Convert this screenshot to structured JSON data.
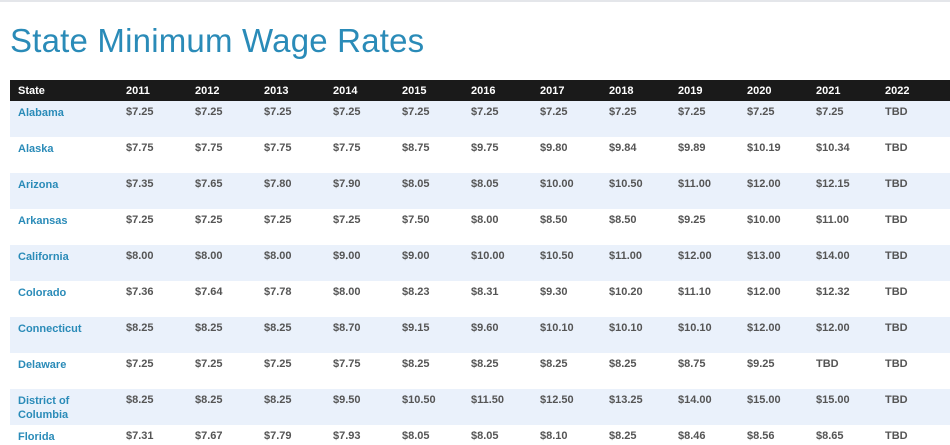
{
  "page": {
    "title": "State Minimum Wage Rates"
  },
  "table": {
    "headers": [
      "State",
      "2011",
      "2012",
      "2013",
      "2014",
      "2015",
      "2016",
      "2017",
      "2018",
      "2019",
      "2020",
      "2021",
      "2022"
    ],
    "rows": [
      {
        "state": "Alabama",
        "values": [
          "$7.25",
          "$7.25",
          "$7.25",
          "$7.25",
          "$7.25",
          "$7.25",
          "$7.25",
          "$7.25",
          "$7.25",
          "$7.25",
          "$7.25",
          "TBD"
        ]
      },
      {
        "state": "Alaska",
        "values": [
          "$7.75",
          "$7.75",
          "$7.75",
          "$7.75",
          "$8.75",
          "$9.75",
          "$9.80",
          "$9.84",
          "$9.89",
          "$10.19",
          "$10.34",
          "TBD"
        ]
      },
      {
        "state": "Arizona",
        "values": [
          "$7.35",
          "$7.65",
          "$7.80",
          "$7.90",
          "$8.05",
          "$8.05",
          "$10.00",
          "$10.50",
          "$11.00",
          "$12.00",
          "$12.15",
          "TBD"
        ]
      },
      {
        "state": "Arkansas",
        "values": [
          "$7.25",
          "$7.25",
          "$7.25",
          "$7.25",
          "$7.50",
          "$8.00",
          "$8.50",
          "$8.50",
          "$9.25",
          "$10.00",
          "$11.00",
          "TBD"
        ]
      },
      {
        "state": "California",
        "values": [
          "$8.00",
          "$8.00",
          "$8.00",
          "$9.00",
          "$9.00",
          "$10.00",
          "$10.50",
          "$11.00",
          "$12.00",
          "$13.00",
          "$14.00",
          "TBD"
        ]
      },
      {
        "state": "Colorado",
        "values": [
          "$7.36",
          "$7.64",
          "$7.78",
          "$8.00",
          "$8.23",
          "$8.31",
          "$9.30",
          "$10.20",
          "$11.10",
          "$12.00",
          "$12.32",
          "TBD"
        ]
      },
      {
        "state": "Connecticut",
        "values": [
          "$8.25",
          "$8.25",
          "$8.25",
          "$8.70",
          "$9.15",
          "$9.60",
          "$10.10",
          "$10.10",
          "$10.10",
          "$12.00",
          "$12.00",
          "TBD"
        ]
      },
      {
        "state": "Delaware",
        "values": [
          "$7.25",
          "$7.25",
          "$7.25",
          "$7.75",
          "$8.25",
          "$8.25",
          "$8.25",
          "$8.25",
          "$8.75",
          "$9.25",
          "TBD",
          "TBD"
        ]
      },
      {
        "state": "District of Columbia",
        "values": [
          "$8.25",
          "$8.25",
          "$8.25",
          "$9.50",
          "$10.50",
          "$11.50",
          "$12.50",
          "$13.25",
          "$14.00",
          "$15.00",
          "$15.00",
          "TBD"
        ]
      },
      {
        "state": "Florida",
        "values": [
          "$7.31",
          "$7.67",
          "$7.79",
          "$7.93",
          "$8.05",
          "$8.05",
          "$8.10",
          "$8.25",
          "$8.46",
          "$8.56",
          "$8.65",
          "TBD"
        ]
      }
    ]
  },
  "colors": {
    "title": "#2a8bb8",
    "header_bg": "#1a1a1a",
    "alt_row_bg": "#eaf1fb",
    "state_text": "#2a8bb8",
    "value_text": "#555555"
  }
}
